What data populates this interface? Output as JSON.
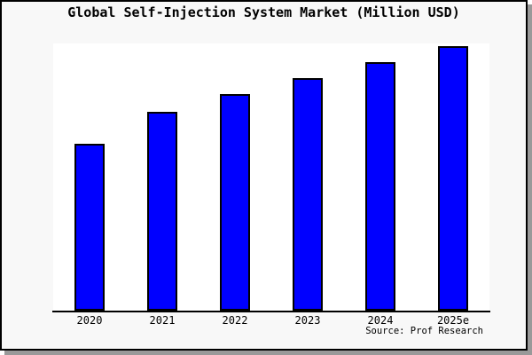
{
  "title": "Global Self-Injection System Market (Million USD)",
  "source": "Source: Prof Research",
  "colors": {
    "bar_fill": "#0000ff",
    "bar_border": "#000000",
    "figure_bg": "#f8f8f8",
    "plot_bg": "#ffffff",
    "axis": "#000000",
    "frame_border": "#000000",
    "frame_shadow": "#999999",
    "text": "#000000"
  },
  "chart_data": {
    "type": "bar",
    "title": "Global Self-Injection System Market (Million USD)",
    "categories": [
      "2020",
      "2021",
      "2022",
      "2023",
      "2024",
      "2025e"
    ],
    "values": [
      63,
      75,
      82,
      88,
      94,
      100
    ],
    "values_note": "No y-axis scale shown in image; values are a relative index estimated from bar heights with 2025e = 100",
    "xlabel": "",
    "ylabel": "",
    "ylim": [
      0,
      101
    ],
    "grid": false,
    "legend": null,
    "bar_color": "#0000ff",
    "source": "Source: Prof Research"
  }
}
